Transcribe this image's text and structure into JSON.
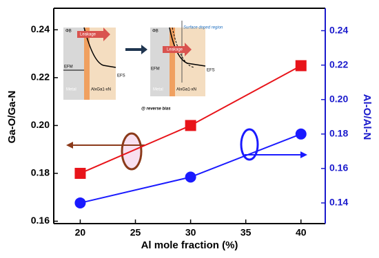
{
  "chart_data": {
    "type": "line",
    "x_label": "Al mole fraction (%)",
    "y_label": "Ga-O/Ga-N",
    "y2_label": "Al-O/Al-N",
    "x": [
      20,
      30,
      40
    ],
    "xlim": [
      17.6,
      42.2
    ],
    "xticks": [
      20,
      25,
      30,
      35,
      40
    ],
    "ylim": [
      0.159,
      0.249
    ],
    "yticks": [
      0.16,
      0.18,
      {
        "value": 0.2,
        "label": "0.20"
      },
      0.22,
      0.24
    ],
    "y2lim": [
      0.128,
      0.253
    ],
    "y2ticks": [
      0.14,
      0.16,
      0.18,
      {
        "value": 0.2,
        "label": "0.20"
      },
      0.22,
      0.24
    ],
    "y2color": "#1a1acc",
    "series": [
      {
        "name": "Ga-O/Ga-N",
        "color": "#e8141a",
        "marker": "square",
        "values": [
          0.18,
          0.2,
          0.225
        ]
      },
      {
        "name": "Al-O/Al-N",
        "color": "#1a1aff",
        "marker": "circle",
        "axis": "y2",
        "values": [
          0.14,
          0.155,
          0.18
        ]
      }
    ],
    "annotations": [
      "Leakage",
      "Metal",
      "AlxGa1-xN",
      "Leakage",
      "Metal",
      "AlxGa1-xN",
      "Surface doped region",
      "@ reverse bias",
      "ΦB",
      "EFM",
      "EFS",
      "ΦB",
      "EFM",
      "EFS"
    ]
  }
}
